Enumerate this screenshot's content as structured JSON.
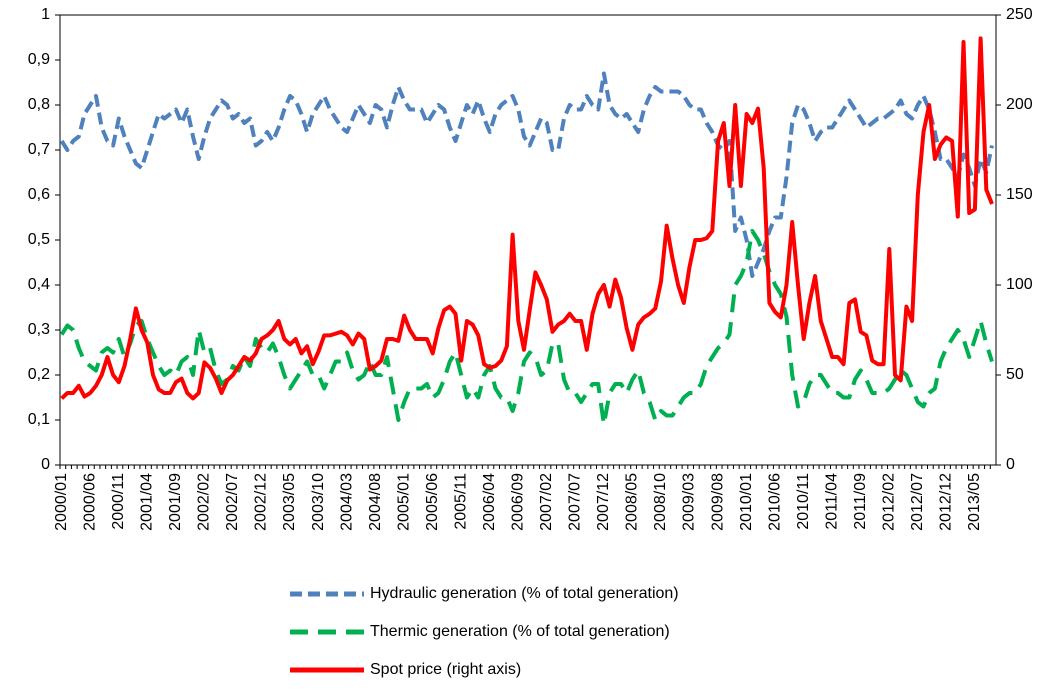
{
  "chart_data": {
    "type": "line",
    "categories": [
      "2000/01",
      null,
      null,
      null,
      null,
      "2000/06",
      null,
      null,
      null,
      null,
      "2000/11",
      null,
      null,
      null,
      null,
      "2001/04",
      null,
      null,
      null,
      null,
      "2001/09",
      null,
      null,
      null,
      null,
      "2002/02",
      null,
      null,
      null,
      null,
      "2002/07",
      null,
      null,
      null,
      null,
      "2002/12",
      null,
      null,
      null,
      null,
      "2003/05",
      null,
      null,
      null,
      null,
      "2003/10",
      null,
      null,
      null,
      null,
      "2004/03",
      null,
      null,
      null,
      null,
      "2004/08",
      null,
      null,
      null,
      null,
      "2005/01",
      null,
      null,
      null,
      null,
      "2005/06",
      null,
      null,
      null,
      null,
      "2005/11",
      null,
      null,
      null,
      null,
      "2006/04",
      null,
      null,
      null,
      null,
      "2006/09",
      null,
      null,
      null,
      null,
      "2007/02",
      null,
      null,
      null,
      null,
      "2007/07",
      null,
      null,
      null,
      null,
      "2007/12",
      null,
      null,
      null,
      null,
      "2008/05",
      null,
      null,
      null,
      null,
      "2008/10",
      null,
      null,
      null,
      null,
      "2009/03",
      null,
      null,
      null,
      null,
      "2009/08",
      null,
      null,
      null,
      null,
      "2010/01",
      null,
      null,
      null,
      null,
      "2010/06",
      null,
      null,
      null,
      null,
      "2010/11",
      null,
      null,
      null,
      null,
      "2011/04",
      null,
      null,
      null,
      null,
      "2011/09",
      null,
      null,
      null,
      null,
      "2012/02",
      null,
      null,
      null,
      null,
      "2012/07",
      null,
      null,
      null,
      null,
      "2012/12",
      null,
      null,
      null,
      null,
      "2013/05",
      null,
      null,
      null
    ],
    "series": [
      {
        "name": "Hydraulic generation (% of total generation)",
        "color": "#4f81bd",
        "dash": "dashed",
        "values": [
          0.72,
          0.7,
          0.72,
          0.73,
          0.78,
          0.8,
          0.82,
          0.75,
          0.72,
          0.71,
          0.77,
          0.73,
          0.7,
          0.67,
          0.66,
          0.7,
          0.74,
          0.78,
          0.77,
          0.78,
          0.79,
          0.76,
          0.79,
          0.73,
          0.68,
          0.73,
          0.77,
          0.79,
          0.81,
          0.8,
          0.77,
          0.78,
          0.76,
          0.77,
          0.71,
          0.72,
          0.74,
          0.72,
          0.75,
          0.79,
          0.82,
          0.81,
          0.78,
          0.74,
          0.78,
          0.8,
          0.82,
          0.79,
          0.77,
          0.75,
          0.74,
          0.77,
          0.8,
          0.78,
          0.76,
          0.8,
          0.79,
          0.75,
          0.8,
          0.84,
          0.81,
          0.79,
          0.79,
          0.79,
          0.76,
          0.78,
          0.8,
          0.79,
          0.75,
          0.72,
          0.76,
          0.8,
          0.78,
          0.81,
          0.77,
          0.74,
          0.78,
          0.8,
          0.81,
          0.82,
          0.79,
          0.73,
          0.71,
          0.74,
          0.77,
          0.76,
          0.7,
          0.7,
          0.77,
          0.8,
          0.79,
          0.79,
          0.82,
          0.8,
          0.79,
          0.87,
          0.8,
          0.78,
          0.77,
          0.78,
          0.76,
          0.74,
          0.79,
          0.82,
          0.84,
          0.83,
          0.83,
          0.83,
          0.83,
          0.82,
          0.8,
          0.79,
          0.79,
          0.76,
          0.74,
          0.71,
          0.7,
          0.72,
          0.52,
          0.55,
          0.5,
          0.42,
          0.45,
          0.48,
          0.52,
          0.55,
          0.55,
          0.64,
          0.76,
          0.8,
          0.79,
          0.76,
          0.72,
          0.74,
          0.75,
          0.75,
          0.77,
          0.79,
          0.81,
          0.79,
          0.77,
          0.75,
          0.76,
          0.77,
          0.77,
          0.78,
          0.79,
          0.81,
          0.78,
          0.77,
          0.8,
          0.82,
          0.79,
          0.74,
          0.68,
          0.68,
          0.66,
          0.64,
          0.69,
          0.66,
          0.62,
          0.68,
          0.65,
          0.71
        ]
      },
      {
        "name": "Thermic generation (% of total generation)",
        "color": "#00b050",
        "dash": "long-dashed",
        "values": [
          0.29,
          0.31,
          0.3,
          0.26,
          0.23,
          0.22,
          0.21,
          0.25,
          0.26,
          0.25,
          0.28,
          0.24,
          0.27,
          0.31,
          0.32,
          0.28,
          0.25,
          0.22,
          0.2,
          0.21,
          0.2,
          0.23,
          0.24,
          0.2,
          0.3,
          0.25,
          0.26,
          0.21,
          0.18,
          0.19,
          0.22,
          0.21,
          0.24,
          0.22,
          0.28,
          0.26,
          0.25,
          0.27,
          0.24,
          0.2,
          0.17,
          0.19,
          0.21,
          0.23,
          0.2,
          0.2,
          0.17,
          0.2,
          0.23,
          0.23,
          0.25,
          0.21,
          0.19,
          0.2,
          0.23,
          0.2,
          0.2,
          0.24,
          0.17,
          0.1,
          0.14,
          0.17,
          0.17,
          0.17,
          0.18,
          0.15,
          0.16,
          0.19,
          0.23,
          0.25,
          0.2,
          0.15,
          0.17,
          0.15,
          0.2,
          0.22,
          0.17,
          0.15,
          0.15,
          0.12,
          0.16,
          0.23,
          0.25,
          0.24,
          0.2,
          0.21,
          0.27,
          0.27,
          0.19,
          0.16,
          0.16,
          0.14,
          0.16,
          0.18,
          0.18,
          0.09,
          0.16,
          0.18,
          0.18,
          0.16,
          0.19,
          0.21,
          0.16,
          0.14,
          0.1,
          0.12,
          0.11,
          0.11,
          0.13,
          0.15,
          0.16,
          0.16,
          0.18,
          0.22,
          0.24,
          0.26,
          0.27,
          0.29,
          0.4,
          0.42,
          0.45,
          0.52,
          0.5,
          0.47,
          0.43,
          0.4,
          0.38,
          0.33,
          0.2,
          0.13,
          0.14,
          0.18,
          0.2,
          0.2,
          0.18,
          0.16,
          0.16,
          0.15,
          0.15,
          0.19,
          0.21,
          0.19,
          0.16,
          0.16,
          0.16,
          0.17,
          0.19,
          0.21,
          0.2,
          0.17,
          0.14,
          0.13,
          0.16,
          0.17,
          0.23,
          0.26,
          0.28,
          0.3,
          0.28,
          0.24,
          0.28,
          0.32,
          0.27,
          0.23
        ]
      },
      {
        "name": "Spot price (right axis)",
        "color": "#ff0000",
        "dash": "solid",
        "axis": "y2",
        "values": [
          37,
          40,
          40,
          44,
          38,
          40,
          44,
          50,
          60,
          50,
          46,
          55,
          70,
          87,
          75,
          68,
          50,
          42,
          40,
          40,
          46,
          48,
          40,
          37,
          40,
          57,
          54,
          48,
          40,
          47,
          50,
          55,
          60,
          58,
          62,
          70,
          72,
          75,
          80,
          70,
          67,
          70,
          62,
          66,
          56,
          63,
          72,
          72,
          73,
          74,
          72,
          67,
          73,
          70,
          53,
          55,
          58,
          70,
          70,
          69,
          83,
          75,
          70,
          70,
          70,
          62,
          76,
          86,
          88,
          84,
          58,
          80,
          78,
          72,
          56,
          54,
          55,
          58,
          66,
          128,
          80,
          64,
          86,
          107,
          100,
          92,
          74,
          78,
          80,
          84,
          80,
          80,
          64,
          84,
          95,
          100,
          88,
          103,
          93,
          76,
          64,
          78,
          82,
          84,
          87,
          102,
          133,
          115,
          100,
          90,
          110,
          125,
          125,
          126,
          130,
          180,
          190,
          155,
          200,
          155,
          195,
          190,
          198,
          165,
          90,
          85,
          82,
          100,
          135,
          100,
          70,
          90,
          105,
          80,
          70,
          60,
          60,
          56,
          90,
          92,
          74,
          72,
          58,
          56,
          56,
          120,
          50,
          47,
          88,
          80,
          150,
          185,
          200,
          170,
          178,
          182,
          180,
          138,
          235,
          140,
          142,
          237,
          153,
          145
        ]
      }
    ],
    "ylim": [
      0,
      1
    ],
    "yticks": [
      0,
      {
        "value": 0.1,
        "label": "0,1"
      },
      {
        "value": 0.2,
        "label": "0,2"
      },
      {
        "value": 0.3,
        "label": "0,3"
      },
      {
        "value": 0.4,
        "label": "0,4"
      },
      {
        "value": 0.5,
        "label": "0,5"
      },
      {
        "value": 0.6,
        "label": "0,6"
      },
      {
        "value": 0.7,
        "label": "0,7"
      },
      {
        "value": 0.8,
        "label": "0,8"
      },
      {
        "value": 0.9,
        "label": "0,9"
      },
      1
    ],
    "y2lim": [
      0,
      250
    ],
    "y2ticks": [
      0,
      50,
      100,
      150,
      200,
      250
    ],
    "grid": false,
    "legend": "bottom"
  }
}
